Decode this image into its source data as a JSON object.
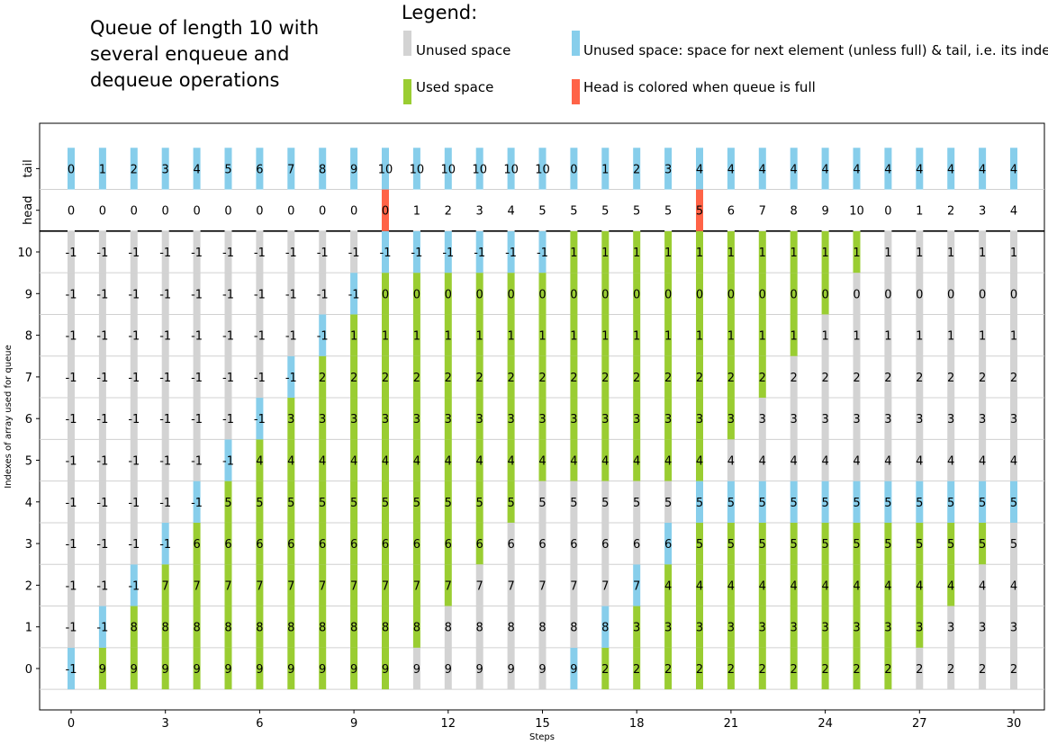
{
  "title": "Queue of length 10 with\nseveral enqueue and\ndequeue operations",
  "legend": {
    "title": "Legend:",
    "items": [
      {
        "label": "Unused space",
        "color": "#d3d3d3"
      },
      {
        "label": "Used space",
        "color": "#9acd32"
      },
      {
        "label": "Unused space: space for next element (unless full) & tail, i.e. its index",
        "color": "#87ceeb"
      },
      {
        "label": "Head is colored when queue is full",
        "color": "#ff6347"
      }
    ]
  },
  "chart_data": {
    "type": "heatmap",
    "xlabel": "Steps",
    "ylabel": "Indexes of array used for queue",
    "x": [
      0,
      1,
      2,
      3,
      4,
      5,
      6,
      7,
      8,
      9,
      10,
      11,
      12,
      13,
      14,
      15,
      16,
      17,
      18,
      19,
      20,
      21,
      22,
      23,
      24,
      25,
      26,
      27,
      28,
      29,
      30
    ],
    "x_ticks": [
      0,
      3,
      6,
      9,
      12,
      15,
      18,
      21,
      24,
      27,
      30
    ],
    "row_labels": [
      "0",
      "1",
      "2",
      "3",
      "4",
      "5",
      "6",
      "7",
      "8",
      "9",
      "10",
      "head",
      "tail"
    ],
    "colors": {
      "unused": "#d3d3d3",
      "used": "#9acd32",
      "next": "#87ceeb",
      "full_head": "#ff6347"
    },
    "tail": [
      0,
      1,
      2,
      3,
      4,
      5,
      6,
      7,
      8,
      9,
      10,
      10,
      10,
      10,
      10,
      10,
      0,
      1,
      2,
      3,
      4,
      4,
      4,
      4,
      4,
      4,
      4,
      4,
      4,
      4,
      4
    ],
    "head": [
      0,
      0,
      0,
      0,
      0,
      0,
      0,
      0,
      0,
      0,
      0,
      1,
      2,
      3,
      4,
      5,
      5,
      5,
      5,
      5,
      5,
      6,
      7,
      8,
      9,
      10,
      0,
      1,
      2,
      3,
      4
    ],
    "full_steps": [
      10,
      20
    ],
    "array_values": [
      [
        -1,
        9,
        9,
        9,
        9,
        9,
        9,
        9,
        9,
        9,
        9,
        9,
        9,
        9,
        9,
        9,
        9,
        2,
        2,
        2,
        2,
        2,
        2,
        2,
        2,
        2,
        2,
        2,
        2,
        2,
        2
      ],
      [
        -1,
        -1,
        8,
        8,
        8,
        8,
        8,
        8,
        8,
        8,
        8,
        8,
        8,
        8,
        8,
        8,
        8,
        8,
        3,
        3,
        3,
        3,
        3,
        3,
        3,
        3,
        3,
        3,
        3,
        3,
        3
      ],
      [
        -1,
        -1,
        -1,
        7,
        7,
        7,
        7,
        7,
        7,
        7,
        7,
        7,
        7,
        7,
        7,
        7,
        7,
        7,
        7,
        4,
        4,
        4,
        4,
        4,
        4,
        4,
        4,
        4,
        4,
        4,
        4
      ],
      [
        -1,
        -1,
        -1,
        -1,
        6,
        6,
        6,
        6,
        6,
        6,
        6,
        6,
        6,
        6,
        6,
        6,
        6,
        6,
        6,
        6,
        5,
        5,
        5,
        5,
        5,
        5,
        5,
        5,
        5,
        5,
        5
      ],
      [
        -1,
        -1,
        -1,
        -1,
        -1,
        5,
        5,
        5,
        5,
        5,
        5,
        5,
        5,
        5,
        5,
        5,
        5,
        5,
        5,
        5,
        5,
        5,
        5,
        5,
        5,
        5,
        5,
        5,
        5,
        5,
        5
      ],
      [
        -1,
        -1,
        -1,
        -1,
        -1,
        -1,
        4,
        4,
        4,
        4,
        4,
        4,
        4,
        4,
        4,
        4,
        4,
        4,
        4,
        4,
        4,
        4,
        4,
        4,
        4,
        4,
        4,
        4,
        4,
        4,
        4
      ],
      [
        -1,
        -1,
        -1,
        -1,
        -1,
        -1,
        -1,
        3,
        3,
        3,
        3,
        3,
        3,
        3,
        3,
        3,
        3,
        3,
        3,
        3,
        3,
        3,
        3,
        3,
        3,
        3,
        3,
        3,
        3,
        3,
        3
      ],
      [
        -1,
        -1,
        -1,
        -1,
        -1,
        -1,
        -1,
        -1,
        2,
        2,
        2,
        2,
        2,
        2,
        2,
        2,
        2,
        2,
        2,
        2,
        2,
        2,
        2,
        2,
        2,
        2,
        2,
        2,
        2,
        2,
        2
      ],
      [
        -1,
        -1,
        -1,
        -1,
        -1,
        -1,
        -1,
        -1,
        -1,
        1,
        1,
        1,
        1,
        1,
        1,
        1,
        1,
        1,
        1,
        1,
        1,
        1,
        1,
        1,
        1,
        1,
        1,
        1,
        1,
        1,
        1
      ],
      [
        -1,
        -1,
        -1,
        -1,
        -1,
        -1,
        -1,
        -1,
        -1,
        -1,
        0,
        0,
        0,
        0,
        0,
        0,
        0,
        0,
        0,
        0,
        0,
        0,
        0,
        0,
        0,
        0,
        0,
        0,
        0,
        0,
        0
      ],
      [
        -1,
        -1,
        -1,
        -1,
        -1,
        -1,
        -1,
        -1,
        -1,
        -1,
        -1,
        -1,
        -1,
        -1,
        -1,
        -1,
        1,
        1,
        1,
        1,
        1,
        1,
        1,
        1,
        1,
        1,
        1,
        1,
        1,
        1,
        1
      ]
    ]
  }
}
